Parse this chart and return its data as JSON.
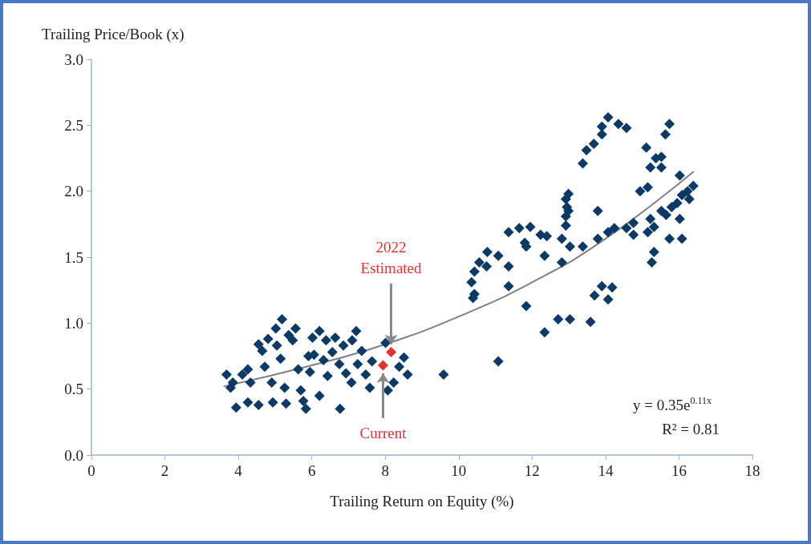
{
  "chart_data": {
    "type": "scatter",
    "xlabel": "Trailing Return on Equity (%)",
    "ylabel": "Trailing Price/Book (x)",
    "xlim": [
      0,
      18
    ],
    "xticks": [
      0,
      2,
      4,
      6,
      8,
      10,
      12,
      14,
      16,
      18
    ],
    "ylim": [
      0,
      3
    ],
    "yticks": [
      {
        "value": 0,
        "label": "0.0"
      },
      0.5,
      {
        "value": 1,
        "label": "1.0"
      },
      1.5,
      {
        "value": 2,
        "label": "2.0"
      },
      2.5,
      {
        "value": 3,
        "label": "3.0"
      }
    ],
    "grid": false,
    "series": [
      {
        "color": "#0b3a66",
        "marker": "diamond",
        "x": [
          3.68,
          3.85,
          3.79,
          3.94,
          4.11,
          4.26,
          4.26,
          4.33,
          4.55,
          4.55,
          4.65,
          4.72,
          4.81,
          4.91,
          4.94,
          5.02,
          5.05,
          5.19,
          5.15,
          5.26,
          5.3,
          5.37,
          5.48,
          5.56,
          5.63,
          5.7,
          5.77,
          5.84,
          5.91,
          5.95,
          6.02,
          6.06,
          6.21,
          6.21,
          6.32,
          6.39,
          6.43,
          6.56,
          6.64,
          6.75,
          6.77,
          6.86,
          6.93,
          7.08,
          7.1,
          7.21,
          7.25,
          7.36,
          7.47,
          7.58,
          7.64,
          8.01,
          8.07,
          8.23,
          8.38,
          8.51,
          8.61,
          9.59,
          11.08,
          14.07,
          13.9,
          13.9,
          14.35,
          14.57,
          13.68,
          13.48,
          13.38,
          15.74,
          15.63,
          15.11,
          15.37,
          15.52,
          15.22,
          15.52,
          16.02,
          16.39,
          16.23,
          16.08,
          15.95,
          15.8,
          14.94,
          15.15,
          16.02,
          15.65,
          15.52,
          15.22,
          15.32,
          15.15,
          15.74,
          16.08,
          15.32,
          15.26,
          14.76,
          14.76,
          14.57,
          14.24,
          14.07,
          13.79,
          13.38,
          13.79,
          12.99,
          12.92,
          12.95,
          12.99,
          12.92,
          12.92,
          12.81,
          13.03,
          12.81,
          12.4,
          12.23,
          12.34,
          11.8,
          11.84,
          11.95,
          11.65,
          11.36,
          11.36,
          11.36,
          11.08,
          10.78,
          10.56,
          10.76,
          10.43,
          10.35,
          10.43,
          10.39,
          11.84,
          13.9,
          14.18,
          13.7,
          14.07,
          12.71,
          13.03,
          13.59,
          12.34,
          16.28
        ],
        "values": [
          0.61,
          0.55,
          0.51,
          0.36,
          0.61,
          0.65,
          0.4,
          0.55,
          0.38,
          0.84,
          0.79,
          0.67,
          0.88,
          0.55,
          0.4,
          0.96,
          0.83,
          1.03,
          0.73,
          0.51,
          0.39,
          0.91,
          0.87,
          0.96,
          0.65,
          0.49,
          0.41,
          0.35,
          0.75,
          0.63,
          0.89,
          0.76,
          0.94,
          0.45,
          0.72,
          0.87,
          0.6,
          0.78,
          0.89,
          0.69,
          0.35,
          0.83,
          0.62,
          0.55,
          0.87,
          0.94,
          0.69,
          0.79,
          0.61,
          0.51,
          0.71,
          0.85,
          0.49,
          0.55,
          0.67,
          0.74,
          0.61,
          0.61,
          0.71,
          2.56,
          2.49,
          2.43,
          2.51,
          2.48,
          2.36,
          2.31,
          2.21,
          2.51,
          2.43,
          2.33,
          2.25,
          2.26,
          2.18,
          2.18,
          2.12,
          2.04,
          2,
          1.97,
          1.91,
          1.88,
          2,
          2.03,
          1.79,
          1.82,
          1.85,
          1.79,
          1.73,
          1.69,
          1.64,
          1.64,
          1.54,
          1.46,
          1.76,
          1.67,
          1.72,
          1.72,
          1.69,
          1.64,
          1.58,
          1.85,
          1.98,
          1.94,
          1.88,
          1.85,
          1.81,
          1.74,
          1.64,
          1.58,
          1.46,
          1.66,
          1.67,
          1.51,
          1.61,
          1.58,
          1.73,
          1.72,
          1.69,
          1.43,
          1.28,
          1.51,
          1.54,
          1.46,
          1.43,
          1.39,
          1.31,
          1.22,
          1.19,
          1.13,
          1.28,
          1.27,
          1.21,
          1.18,
          1.03,
          1.03,
          1.01,
          0.93,
          1.94
        ]
      },
      {
        "color": "#e8302e",
        "marker": "diamond",
        "x": [
          8.16,
          7.94
        ],
        "values": [
          0.78,
          0.68
        ]
      },
      {
        "type": "line",
        "color": "#808080",
        "x": [
          3.6,
          6,
          8,
          10,
          12,
          14,
          16.4
        ],
        "values": [
          0.52,
          0.68,
          0.84,
          1.05,
          1.31,
          1.64,
          2.15
        ]
      }
    ],
    "annotations": [
      {
        "text": "2022\nEstimated",
        "x": 8.16,
        "y": 0.84
      },
      {
        "text": "Current",
        "x": 7.94,
        "y": 0.62
      },
      "y = 0.35e$^{0.11x}$",
      "R² = 0.81"
    ]
  }
}
